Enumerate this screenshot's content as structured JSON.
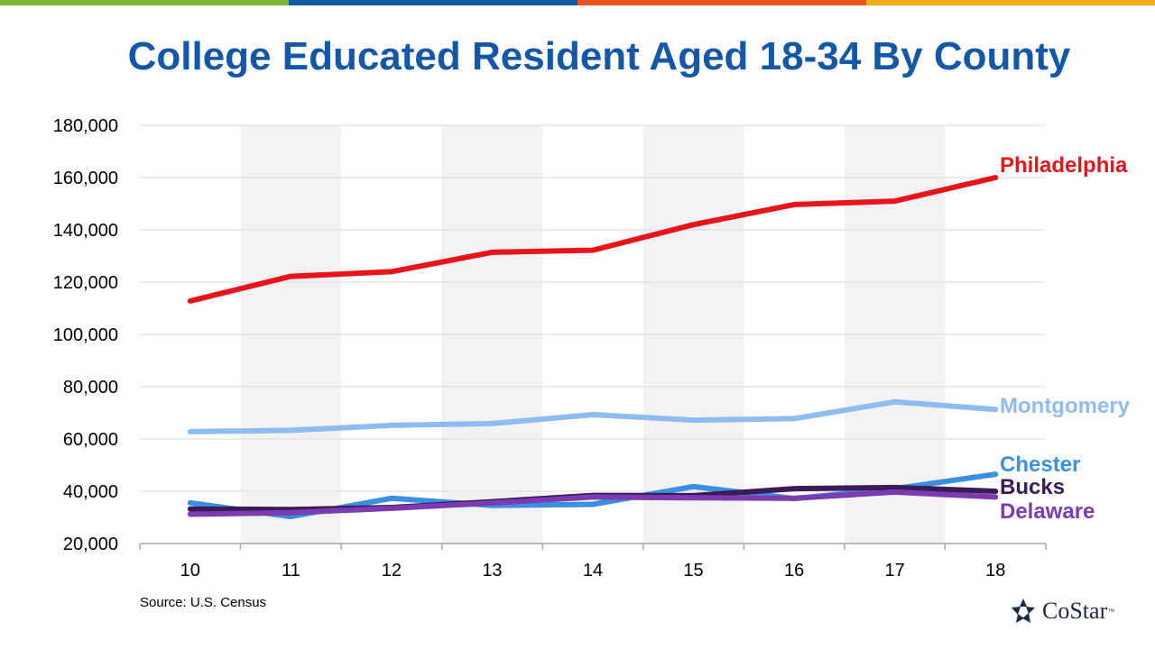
{
  "topbar_colors": [
    "#7ab833",
    "#1358a8",
    "#e8541e",
    "#f6a81c"
  ],
  "title": "College Educated Resident Aged 18-34 By County",
  "source": "Source: U.S. Census",
  "logo": {
    "text": "CoStar",
    "tm": "™",
    "icon": "costar-star-icon"
  },
  "chart_data": {
    "type": "line",
    "title": "College Educated Resident Aged 18-34 By County",
    "xlabel": "",
    "ylabel": "",
    "categories": [
      "10",
      "11",
      "12",
      "13",
      "14",
      "15",
      "16",
      "17",
      "18"
    ],
    "ylim": [
      20000,
      180000
    ],
    "yticks": [
      "20,000",
      "40,000",
      "60,000",
      "80,000",
      "100,000",
      "120,000",
      "140,000",
      "160,000",
      "180,000"
    ],
    "grid": true,
    "alternating_shaded_columns": true,
    "legend": "direct labels at line ends",
    "series": [
      {
        "name": "Philadelphia",
        "color": "#e8141b",
        "values": [
          112800,
          122200,
          124000,
          131400,
          132200,
          142000,
          149700,
          151000,
          160000
        ]
      },
      {
        "name": "Montgomery",
        "color": "#8fbcf0",
        "values": [
          62800,
          63300,
          65200,
          65900,
          69300,
          67200,
          67800,
          74200,
          71300
        ]
      },
      {
        "name": "Chester",
        "color": "#3a8fe0",
        "values": [
          35600,
          30300,
          37300,
          34600,
          35000,
          41800,
          37200,
          41000,
          46500
        ]
      },
      {
        "name": "Bucks",
        "color": "#3b1a55",
        "values": [
          33200,
          33000,
          33800,
          36000,
          38400,
          38300,
          41000,
          41400,
          40000
        ]
      },
      {
        "name": "Delaware",
        "color": "#7a3cb0",
        "values": [
          31200,
          31800,
          33500,
          35500,
          37800,
          37500,
          37300,
          39700,
          37800
        ]
      }
    ]
  }
}
